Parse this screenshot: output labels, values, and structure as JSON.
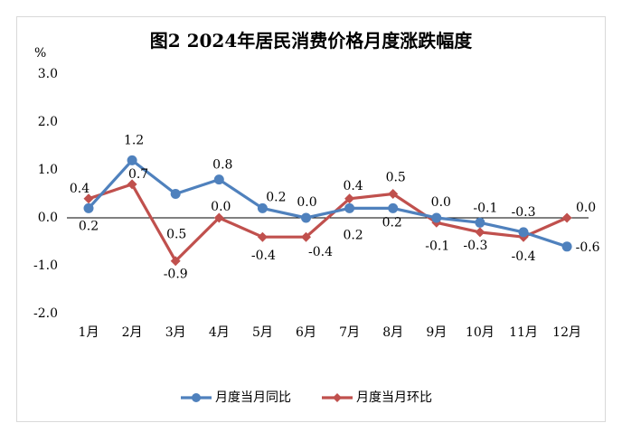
{
  "chart_data": {
    "type": "line",
    "title": "图2  2024年居民消费价格月度涨跌幅度",
    "ylabel": "%",
    "xlabel": "",
    "ylim": [
      -2.0,
      3.0
    ],
    "yticks": [
      "3.0",
      "2.0",
      "1.0",
      "0.0",
      "-1.0",
      "-2.0"
    ],
    "ytick_values": [
      3,
      2,
      1,
      0,
      -1,
      -2
    ],
    "categories": [
      "1月",
      "2月",
      "3月",
      "4月",
      "5月",
      "6月",
      "7月",
      "8月",
      "9月",
      "10月",
      "11月",
      "12月"
    ],
    "grid": false,
    "legend": "bottom",
    "series": [
      {
        "name": "月度当月同比",
        "color": "#4F81BD",
        "marker": "circle",
        "values": [
          0.2,
          1.2,
          0.5,
          0.8,
          0.2,
          0.0,
          0.2,
          0.2,
          0.0,
          -0.1,
          -0.3,
          -0.6
        ],
        "labels": [
          "0.2",
          "1.2",
          "0.5",
          "0.8",
          "0.2",
          "0.0",
          "0.2",
          "0.2",
          "0.0",
          "-0.1",
          "-0.3",
          "-0.6"
        ]
      },
      {
        "name": "月度当月环比",
        "color": "#C0504D",
        "marker": "diamond",
        "values": [
          0.4,
          0.7,
          -0.9,
          0.0,
          -0.4,
          -0.4,
          0.4,
          0.5,
          -0.1,
          -0.3,
          -0.4,
          0.0
        ],
        "labels": [
          "0.4",
          "0.7",
          "-0.9",
          "0.0",
          "-0.4",
          "-0.4",
          "0.4",
          "0.5",
          "-0.1",
          "-0.3",
          "-0.4",
          "0.0"
        ]
      }
    ]
  }
}
